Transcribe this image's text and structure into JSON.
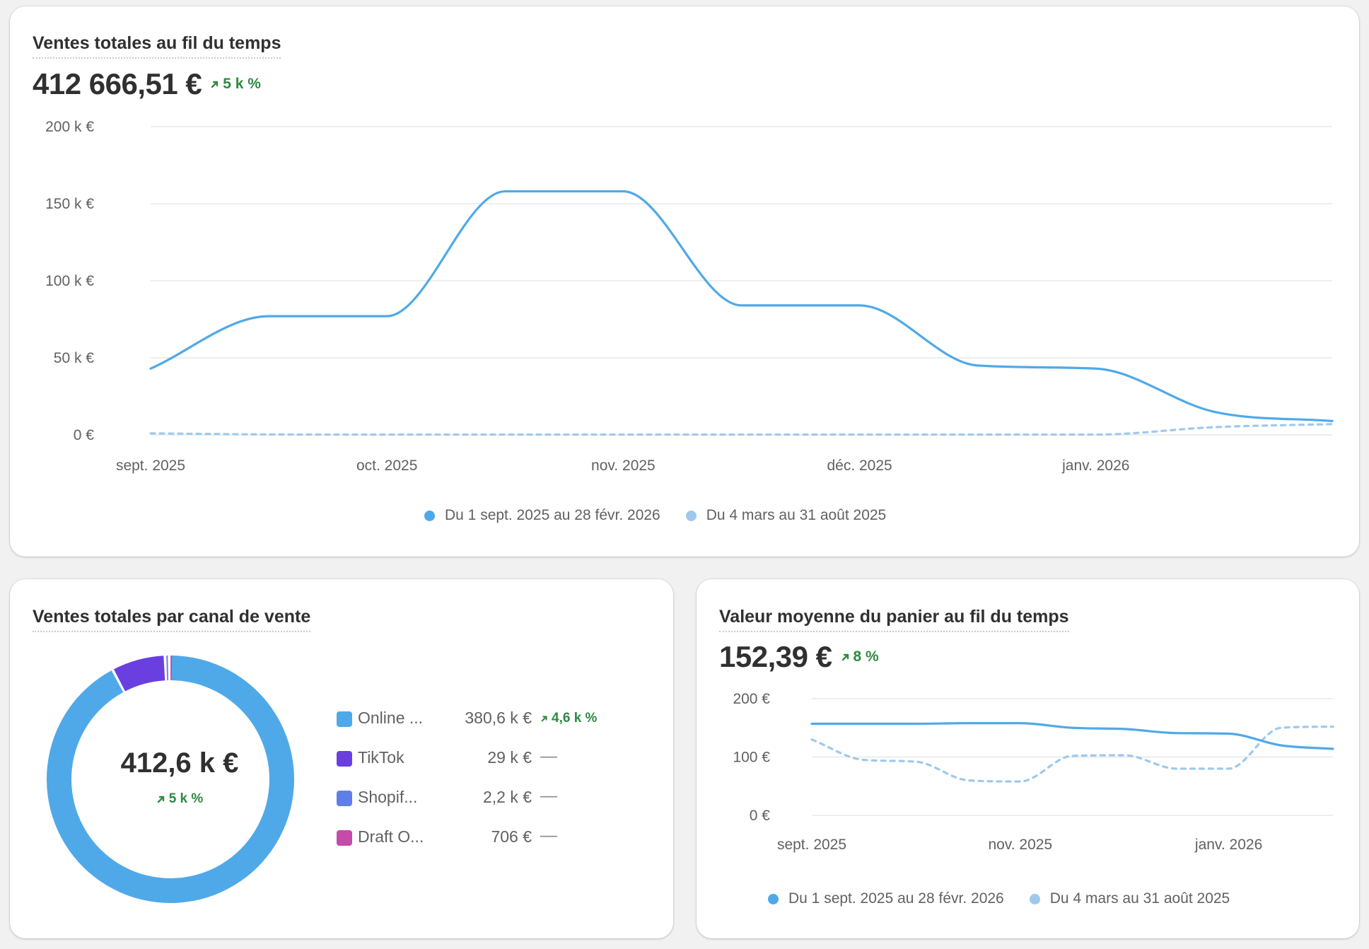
{
  "card_total_sales": {
    "title": "Ventes totales au fil du temps",
    "value": "412 666,51 €",
    "trend": "5 k %"
  },
  "card_channel": {
    "title": "Ventes totales par canal de vente",
    "total": "412,6 k €",
    "trend": "5 k %",
    "channels": [
      {
        "name": "Online ...",
        "value": "380,6 k €",
        "change": "4,6 k %",
        "change_type": "up",
        "color": "#4fa9e8"
      },
      {
        "name": "TikTok",
        "value": "29 k €",
        "change": "—",
        "change_type": "none",
        "color": "#6a3fe0"
      },
      {
        "name": "Shopif...",
        "value": "2,2 k €",
        "change": "—",
        "change_type": "none",
        "color": "#5f7fe8"
      },
      {
        "name": "Draft O...",
        "value": "706 €",
        "change": "—",
        "change_type": "none",
        "color": "#c64aa8"
      }
    ]
  },
  "card_avg_basket": {
    "title": "Valeur moyenne du panier au fil du temps",
    "value": "152,39 €",
    "trend": "8 %"
  },
  "legend": {
    "current": "Du 1 sept. 2025 au 28 févr. 2026",
    "previous": "Du 4 mars au 31 août 2025"
  },
  "colors": {
    "current": "#4fa9e8",
    "previous": "#9ec9ec",
    "positive": "#2f8a3f"
  },
  "chart_data": [
    {
      "type": "line",
      "title": "Ventes totales au fil du temps",
      "y_tick_labels": [
        "0 €",
        "50 k €",
        "100 k €",
        "150 k €",
        "200 k €"
      ],
      "y_ticks": [
        0,
        50000,
        100000,
        150000,
        200000
      ],
      "ylim": [
        0,
        200000
      ],
      "x_tick_labels": [
        "sept. 2025",
        "oct. 2025",
        "nov. 2025",
        "déc. 2025",
        "janv. 2026"
      ],
      "x_index": [
        0,
        0.5,
        1,
        1.5,
        2,
        2.5,
        3,
        3.5,
        4,
        4.5,
        5
      ],
      "x_ticks": [
        0,
        1,
        2,
        3,
        4
      ],
      "xlim": [
        0,
        5
      ],
      "grid": true,
      "legend_position": "bottom",
      "series": [
        {
          "name": "Du 1 sept. 2025 au 28 févr. 2026",
          "style": "solid",
          "values": [
            43000,
            77000,
            77000,
            158000,
            158000,
            84000,
            84000,
            45000,
            43000,
            15000,
            9000
          ]
        },
        {
          "name": "Du 4 mars au 31 août 2025",
          "style": "dashed",
          "values": [
            1000,
            300,
            200,
            200,
            200,
            200,
            200,
            200,
            200,
            5000,
            7000
          ]
        }
      ]
    },
    {
      "type": "pie",
      "title": "Ventes totales par canal de vente",
      "categories": [
        "Online ...",
        "TikTok",
        "Shopif...",
        "Draft O..."
      ],
      "values": [
        380600,
        29000,
        2200,
        706
      ],
      "donut": true
    },
    {
      "type": "line",
      "title": "Valeur moyenne du panier au fil du temps",
      "y_tick_labels": [
        "0 €",
        "100 €",
        "200 €"
      ],
      "y_ticks": [
        0,
        100,
        200
      ],
      "ylim": [
        0,
        200
      ],
      "x_tick_labels": [
        "sept. 2025",
        "nov. 2025",
        "janv. 2026"
      ],
      "x_ticks": [
        0,
        2,
        4
      ],
      "xlim": [
        0,
        5
      ],
      "x_index": [
        0,
        0.5,
        1,
        1.5,
        2,
        2.5,
        3,
        3.5,
        4,
        4.5,
        5
      ],
      "grid": true,
      "legend_position": "bottom",
      "series": [
        {
          "name": "Du 1 sept. 2025 au 28 févr. 2026",
          "style": "solid",
          "values": [
            157,
            157,
            157,
            158,
            158,
            150,
            148,
            141,
            140,
            120,
            114
          ]
        },
        {
          "name": "Du 4 mars au 31 août 2025",
          "style": "dashed",
          "values": [
            130,
            95,
            92,
            60,
            58,
            102,
            103,
            80,
            80,
            150,
            152
          ]
        }
      ]
    }
  ]
}
